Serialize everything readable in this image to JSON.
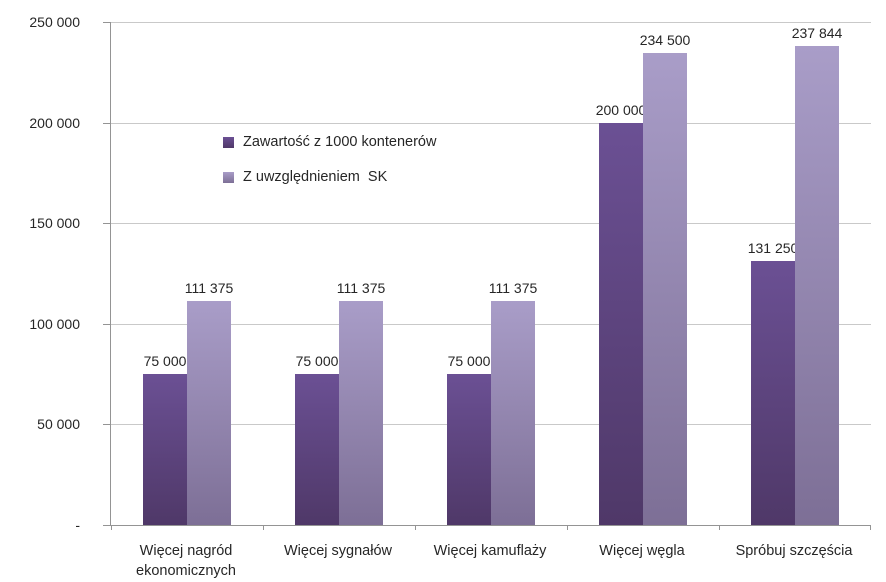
{
  "chart_data": {
    "type": "bar",
    "title": "",
    "xlabel": "",
    "ylabel": "",
    "grid": true,
    "legend_position": "inside-upper-left",
    "categories": [
      "Więcej nagród ekonomicznych",
      "Więcej sygnałów",
      "Więcej kamuflaży",
      "Więcej węgla",
      "Spróbuj szczęścia"
    ],
    "series": [
      {
        "name": "Zawartość z 1000 kontenerów",
        "values": [
          75000,
          75000,
          75000,
          200000,
          131250
        ],
        "labels": [
          "75 000",
          "75 000",
          "75 000",
          "200 000",
          "131 250"
        ],
        "color_top": "#6b5094",
        "color_bottom": "#4f3868",
        "legend_color": "#5a4480"
      },
      {
        "name": "Z uwzględnieniem  SK",
        "values": [
          111375,
          111375,
          111375,
          234500,
          237844
        ],
        "labels": [
          "111 375",
          "111 375",
          "111 375",
          "234 500",
          "237 844"
        ],
        "color_top": "#a99dc8",
        "color_bottom": "#7d6f96",
        "legend_color": "#a195c0"
      }
    ],
    "y_axis": {
      "min": 0,
      "max": 250000,
      "step": 50000,
      "tick_labels": [
        "250 000",
        "200 000",
        "150 000",
        "100 000",
        "50 000",
        "-"
      ]
    },
    "colors": {
      "gridline": "#c9c9c9",
      "axis": "#949494",
      "text": "#262626",
      "background": "#ffffff"
    }
  }
}
